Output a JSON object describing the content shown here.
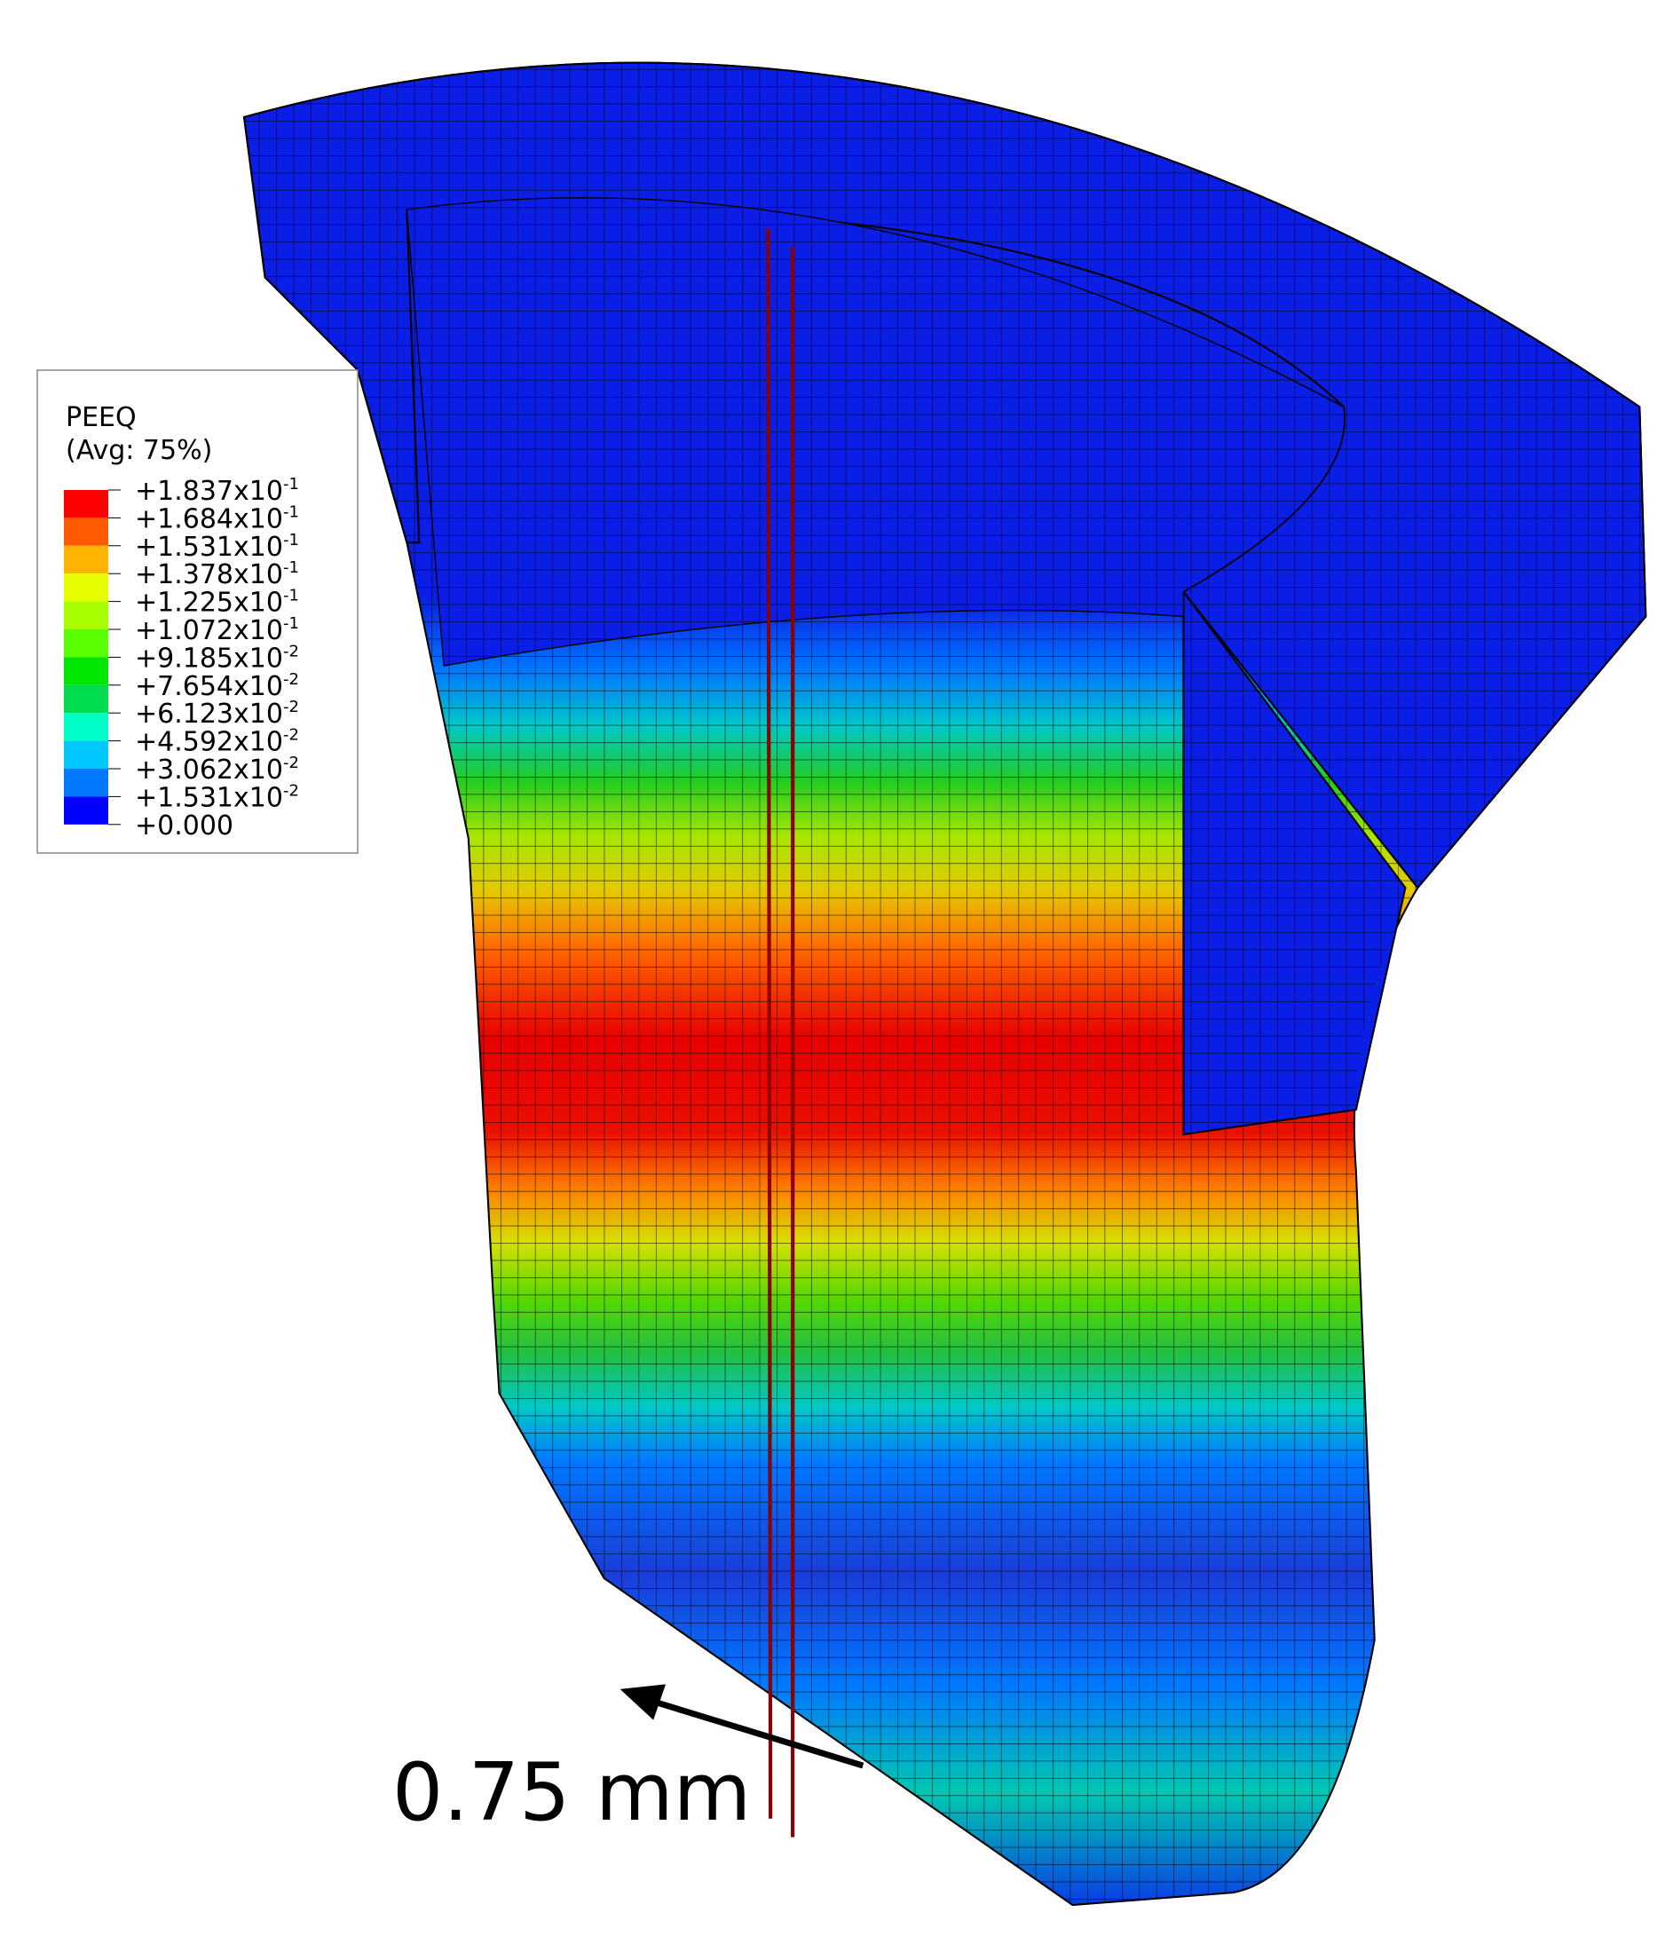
{
  "legend": {
    "title": "PEEQ",
    "subtitle": "(Avg: 75%)",
    "colors": [
      "#ff0000",
      "#ff5a00",
      "#ffb400",
      "#e6ff00",
      "#a8ff00",
      "#5aff00",
      "#00e600",
      "#00dc50",
      "#00ffc8",
      "#00c8ff",
      "#0078ff",
      "#0000ff"
    ],
    "labels": [
      {
        "base": "+1.837x10",
        "exp": "-1"
      },
      {
        "base": "+1.684x10",
        "exp": "-1"
      },
      {
        "base": "+1.531x10",
        "exp": "-1"
      },
      {
        "base": "+1.378x10",
        "exp": "-1"
      },
      {
        "base": "+1.225x10",
        "exp": "-1"
      },
      {
        "base": "+1.072x10",
        "exp": "-1"
      },
      {
        "base": "+9.185x10",
        "exp": "-2"
      },
      {
        "base": "+7.654x10",
        "exp": "-2"
      },
      {
        "base": "+6.123x10",
        "exp": "-2"
      },
      {
        "base": "+4.592x10",
        "exp": "-2"
      },
      {
        "base": "+3.062x10",
        "exp": "-2"
      },
      {
        "base": "+1.531x10",
        "exp": "-2"
      },
      {
        "base": "+0.000"
      }
    ]
  },
  "annotation": "0.75 mm"
}
